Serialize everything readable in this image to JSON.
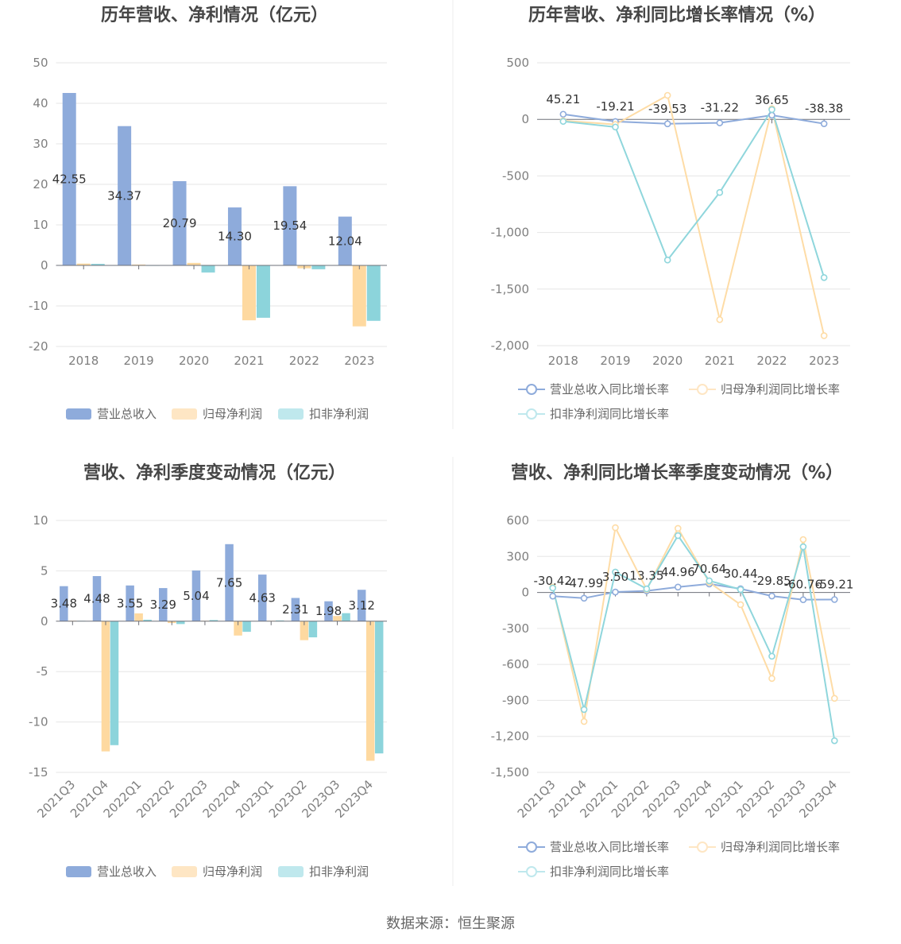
{
  "source": "数据来源：恒生聚源",
  "chart_data": [
    {
      "type": "bar",
      "title": "历年营收、净利情况（亿元）",
      "categories": [
        "2018",
        "2019",
        "2020",
        "2021",
        "2022",
        "2023"
      ],
      "ylim": [
        -20,
        50
      ],
      "yticks": [
        "50",
        "40",
        "30",
        "20",
        "10",
        "0",
        "-10",
        "-20"
      ],
      "grid": true,
      "legend_position": "bottom",
      "series": [
        {
          "name": "营业总收入",
          "color": "#8eabdb",
          "legend_color": "#8eabdb",
          "data_labels": true,
          "values": [
            42.55,
            34.37,
            20.79,
            14.3,
            19.54,
            12.04
          ]
        },
        {
          "name": "归母净利润",
          "color": "#fed9a0",
          "legend_color": "#fee6c4",
          "data_labels": false,
          "values": [
            0.45,
            0.21,
            0.62,
            -13.55,
            -0.72,
            -15.04
          ]
        },
        {
          "name": "扣非净利润",
          "color": "#8cd4db",
          "legend_color": "#bfe8ed",
          "data_labels": false,
          "values": [
            0.38,
            -0.12,
            -1.75,
            -12.92,
            -0.95,
            -13.68
          ]
        }
      ]
    },
    {
      "type": "line",
      "title": "历年营收、净利同比增长率情况（%）",
      "categories": [
        "2018",
        "2019",
        "2020",
        "2021",
        "2022",
        "2023"
      ],
      "ylim": [
        -2000,
        500
      ],
      "yticks": [
        "500",
        "0",
        "-500",
        "-1,000",
        "-1,500",
        "-2,000"
      ],
      "grid": true,
      "legend_position": "bottom",
      "series": [
        {
          "name": "营业总收入同比增长率",
          "color": "#8eabdb",
          "legend_color": "#8eabdb",
          "data_labels": true,
          "values": [
            45.21,
            -19.21,
            -39.53,
            -31.22,
            36.65,
            -38.38
          ]
        },
        {
          "name": "归母净利润同比增长率",
          "color": "#fedca6",
          "legend_color": "#fee6c4",
          "data_labels": false,
          "values": [
            -12,
            -45,
            212,
            -1770,
            95,
            -1912
          ]
        },
        {
          "name": "扣非净利润同比增长率",
          "color": "#8fd6dc",
          "legend_color": "#bfe8ed",
          "data_labels": false,
          "values": [
            -18,
            -68,
            -1243,
            -646,
            86,
            -1398
          ]
        }
      ]
    },
    {
      "type": "bar",
      "title": "营收、净利季度变动情况（亿元）",
      "categories": [
        "2021Q3",
        "2021Q4",
        "2022Q1",
        "2022Q2",
        "2022Q3",
        "2022Q4",
        "2023Q1",
        "2023Q2",
        "2023Q3",
        "2023Q4"
      ],
      "ylim": [
        -15,
        10
      ],
      "yticks": [
        "10",
        "5",
        "0",
        "-5",
        "-10",
        "-15"
      ],
      "grid": true,
      "legend_position": "bottom",
      "series": [
        {
          "name": "营业总收入",
          "color": "#8eabdb",
          "legend_color": "#8eabdb",
          "data_labels": true,
          "values": [
            3.48,
            4.48,
            3.55,
            3.29,
            5.04,
            7.65,
            4.63,
            2.31,
            1.98,
            3.12
          ]
        },
        {
          "name": "归母净利润",
          "color": "#fed9a0",
          "legend_color": "#fee6c4",
          "data_labels": false,
          "values": [
            0.06,
            -12.92,
            0.78,
            -0.18,
            0.05,
            -1.42,
            0.05,
            -1.88,
            0.52,
            -13.85
          ]
        },
        {
          "name": "扣非净利润",
          "color": "#8cd4db",
          "legend_color": "#bfe8ed",
          "data_labels": false,
          "values": [
            0.04,
            -12.3,
            0.15,
            -0.28,
            0.12,
            -1.05,
            0.08,
            -1.6,
            0.8,
            -13.12
          ]
        }
      ]
    },
    {
      "type": "line",
      "title": "营收、净利同比增长率季度变动情况（%）",
      "categories": [
        "2021Q3",
        "2021Q4",
        "2022Q1",
        "2022Q2",
        "2022Q3",
        "2022Q4",
        "2023Q1",
        "2023Q2",
        "2023Q3",
        "2023Q4"
      ],
      "ylim": [
        -1500,
        600
      ],
      "yticks": [
        "600",
        "300",
        "0",
        "-300",
        "-600",
        "-900",
        "-1,200",
        "-1,500"
      ],
      "grid": true,
      "legend_position": "bottom",
      "series": [
        {
          "name": "营业总收入同比增长率",
          "color": "#8eabdb",
          "legend_color": "#8eabdb",
          "data_labels": true,
          "values": [
            -30.42,
            -47.99,
            3.5,
            13.35,
            44.96,
            70.64,
            30.44,
            -29.85,
            -60.76,
            -59.21
          ]
        },
        {
          "name": "归母净利润同比增长率",
          "color": "#fedca6",
          "legend_color": "#fee6c4",
          "data_labels": false,
          "values": [
            45,
            -1076,
            540,
            24,
            534,
            84,
            -102,
            -717,
            441,
            -883
          ]
        },
        {
          "name": "扣非净利润同比增长率",
          "color": "#8fd6dc",
          "legend_color": "#bfe8ed",
          "data_labels": false,
          "values": [
            37,
            -976,
            170,
            30,
            474,
            97,
            24,
            -532,
            381,
            -1236
          ]
        }
      ]
    }
  ]
}
